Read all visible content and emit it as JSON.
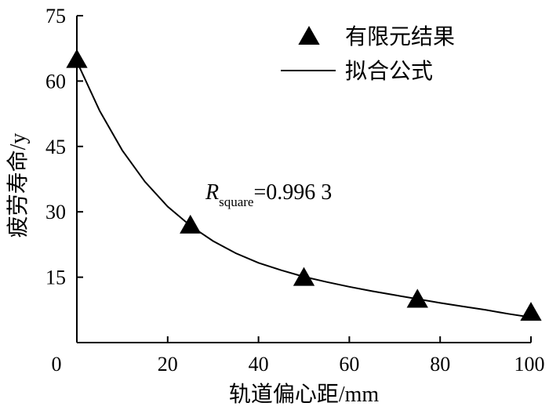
{
  "chart_data": {
    "type": "scatter",
    "xlabel": "轨道偏心距/mm",
    "ylabel": "疲劳寿命/y",
    "xlim": [
      0,
      100
    ],
    "ylim": [
      0,
      75
    ],
    "xticks": [
      0,
      20,
      40,
      60,
      80,
      100
    ],
    "yticks": [
      0,
      15,
      30,
      45,
      60,
      75
    ],
    "x_tick_labels": [
      "0",
      "20",
      "40",
      "60",
      "80",
      "100"
    ],
    "y_tick_labels": [
      "",
      "15",
      "30",
      "45",
      "60",
      "75"
    ],
    "grid": false,
    "legend_position": "top-right",
    "series": [
      {
        "name": "有限元结果",
        "kind": "scatter",
        "marker": "triangle",
        "x": [
          0,
          25,
          50,
          75,
          100
        ],
        "y": [
          65,
          27,
          15,
          10,
          7
        ]
      },
      {
        "name": "拟合公式",
        "kind": "line",
        "x": [
          0,
          5,
          10,
          15,
          20,
          25,
          30,
          35,
          40,
          45,
          50,
          55,
          60,
          65,
          70,
          75,
          80,
          85,
          90,
          95,
          100
        ],
        "y": [
          64.5,
          53.2,
          44.1,
          36.9,
          31.2,
          26.8,
          23.3,
          20.5,
          18.3,
          16.6,
          15.1,
          13.9,
          12.8,
          11.8,
          10.9,
          10.0,
          9.1,
          8.3,
          7.5,
          6.6,
          5.8
        ]
      }
    ],
    "annotation": {
      "var": "R",
      "sub": "square",
      "text": "=0.996 3",
      "at_x": 29,
      "at_y": 34
    }
  }
}
